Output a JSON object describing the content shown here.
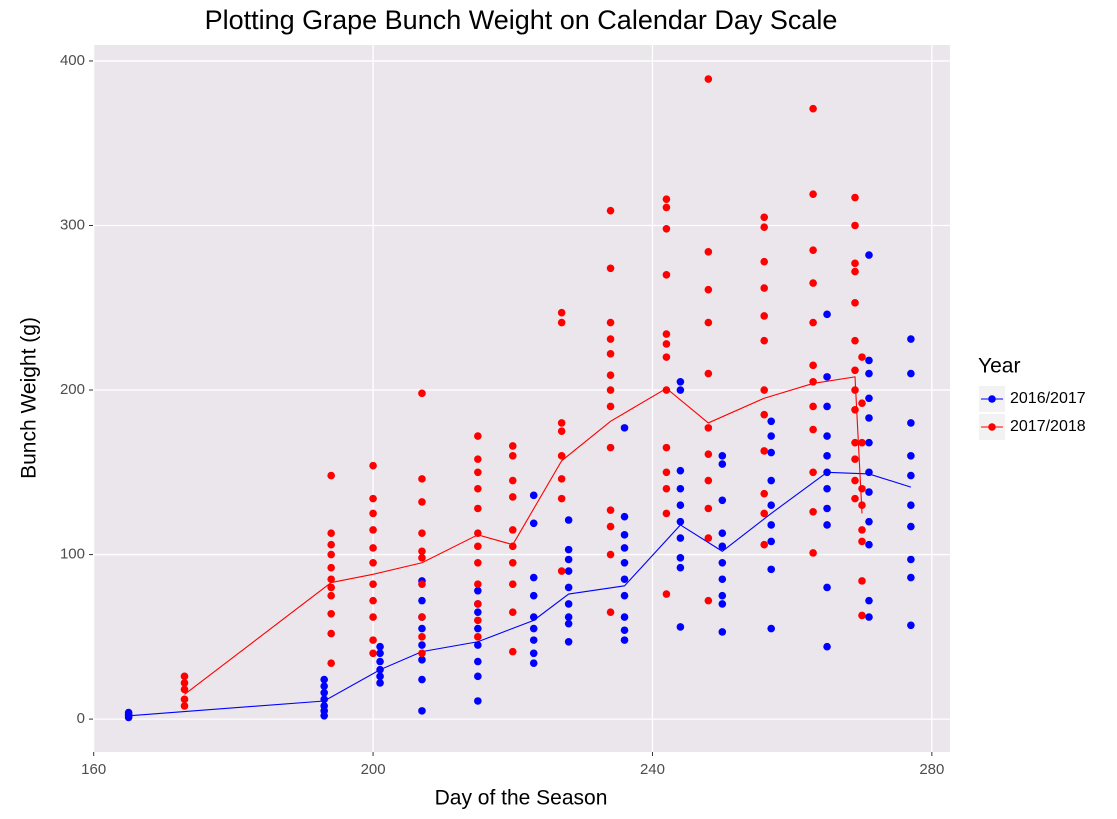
{
  "chart_data": {
    "type": "scatter",
    "title": "Plotting Grape Bunch Weight on Calendar Day Scale",
    "x_label": "Day of the Season",
    "y_label": "Bunch Weight (g)",
    "legend_title": "Year",
    "xlim": [
      159.9,
      282.6
    ],
    "ylim": [
      -20,
      409.7
    ],
    "xticks": [
      160,
      200,
      240,
      280
    ],
    "yticks": [
      0,
      100,
      200,
      300,
      400
    ],
    "grid": true,
    "legend": "right",
    "series": [
      {
        "name": "2016/2017",
        "color": "#0000ff",
        "x": [
          165,
          165,
          165,
          165,
          193,
          193,
          193,
          193,
          193,
          193,
          193,
          201,
          201,
          201,
          201,
          201,
          201,
          207,
          207,
          207,
          207,
          207,
          207,
          207,
          207,
          215,
          215,
          215,
          215,
          215,
          215,
          215,
          215,
          223,
          223,
          223,
          223,
          223,
          223,
          223,
          223,
          223,
          228,
          228,
          228,
          228,
          228,
          228,
          228,
          228,
          228,
          236,
          236,
          236,
          236,
          236,
          236,
          236,
          236,
          236,
          236,
          244,
          244,
          244,
          244,
          244,
          244,
          244,
          244,
          244,
          244,
          250,
          250,
          250,
          250,
          250,
          250,
          250,
          250,
          250,
          250,
          257,
          257,
          257,
          257,
          257,
          257,
          257,
          257,
          257,
          265,
          265,
          265,
          265,
          265,
          265,
          265,
          265,
          265,
          265,
          265,
          271,
          271,
          271,
          271,
          271,
          271,
          271,
          271,
          271,
          271,
          271,
          271,
          277,
          277,
          277,
          277,
          277,
          277,
          277,
          277,
          277,
          277
        ],
        "values": [
          2,
          4,
          1,
          3,
          5,
          8,
          12,
          16,
          20,
          24,
          2,
          22,
          26,
          30,
          35,
          40,
          44,
          5,
          24,
          36,
          45,
          55,
          62,
          72,
          84,
          11,
          26,
          35,
          45,
          55,
          65,
          70,
          78,
          34,
          40,
          48,
          55,
          62,
          75,
          86,
          119,
          136,
          47,
          58,
          62,
          70,
          80,
          90,
          97,
          103,
          121,
          48,
          54,
          62,
          75,
          85,
          95,
          104,
          112,
          123,
          177,
          56,
          92,
          98,
          110,
          120,
          130,
          140,
          151,
          200,
          205,
          53,
          70,
          75,
          85,
          95,
          105,
          113,
          133,
          155,
          160,
          55,
          91,
          108,
          118,
          130,
          145,
          162,
          172,
          181,
          44,
          80,
          118,
          128,
          140,
          150,
          160,
          172,
          190,
          208,
          246,
          62,
          72,
          106,
          120,
          138,
          150,
          168,
          183,
          195,
          210,
          218,
          282,
          57,
          86,
          97,
          117,
          130,
          148,
          160,
          180,
          210,
          231
        ],
        "line": {
          "x": [
            165,
            193,
            201,
            207,
            215,
            223,
            228,
            236,
            244,
            250,
            257,
            265,
            271,
            277
          ],
          "values": [
            2,
            11,
            30,
            41,
            47,
            60,
            76,
            81,
            118,
            102,
            125,
            150,
            149,
            141
          ]
        }
      },
      {
        "name": "2017/2018",
        "color": "#ff0000",
        "x": [
          173,
          173,
          173,
          173,
          173,
          194,
          194,
          194,
          194,
          194,
          194,
          194,
          194,
          194,
          194,
          194,
          200,
          200,
          200,
          200,
          200,
          200,
          200,
          200,
          200,
          200,
          200,
          207,
          207,
          207,
          207,
          207,
          207,
          207,
          207,
          207,
          207,
          215,
          215,
          215,
          215,
          215,
          215,
          215,
          215,
          215,
          215,
          215,
          215,
          220,
          220,
          220,
          220,
          220,
          220,
          220,
          220,
          220,
          220,
          227,
          227,
          227,
          227,
          227,
          227,
          227,
          227,
          234,
          234,
          234,
          234,
          234,
          234,
          234,
          234,
          234,
          234,
          234,
          234,
          234,
          242,
          242,
          242,
          242,
          242,
          242,
          242,
          242,
          242,
          242,
          242,
          242,
          242,
          248,
          248,
          248,
          248,
          248,
          248,
          248,
          248,
          248,
          248,
          248,
          256,
          256,
          256,
          256,
          256,
          256,
          256,
          256,
          256,
          256,
          256,
          256,
          263,
          263,
          263,
          263,
          263,
          263,
          263,
          263,
          263,
          263,
          263,
          263,
          269,
          269,
          269,
          269,
          269,
          269,
          269,
          269,
          269,
          269,
          269,
          269,
          269,
          270,
          270,
          270,
          270,
          270,
          270,
          270,
          270,
          270
        ],
        "values": [
          8,
          12,
          18,
          22,
          26,
          34,
          52,
          64,
          75,
          80,
          85,
          92,
          100,
          106,
          113,
          148,
          40,
          48,
          62,
          72,
          82,
          95,
          104,
          115,
          125,
          134,
          154,
          40,
          50,
          62,
          82,
          98,
          102,
          113,
          132,
          146,
          198,
          50,
          60,
          70,
          82,
          95,
          105,
          113,
          128,
          140,
          150,
          158,
          172,
          41,
          65,
          82,
          95,
          105,
          115,
          135,
          145,
          160,
          166,
          90,
          134,
          146,
          160,
          175,
          180,
          241,
          247,
          65,
          100,
          117,
          127,
          165,
          190,
          200,
          209,
          222,
          231,
          241,
          274,
          309,
          76,
          125,
          140,
          150,
          165,
          200,
          220,
          228,
          234,
          270,
          298,
          311,
          316,
          72,
          110,
          128,
          145,
          161,
          177,
          210,
          241,
          261,
          284,
          389,
          106,
          125,
          137,
          163,
          185,
          200,
          230,
          245,
          262,
          278,
          299,
          305,
          101,
          126,
          150,
          176,
          190,
          205,
          215,
          241,
          265,
          285,
          319,
          371,
          134,
          145,
          158,
          168,
          188,
          200,
          212,
          230,
          253,
          272,
          277,
          300,
          317,
          63,
          84,
          108,
          115,
          130,
          140,
          168,
          192,
          220
        ],
        "line": {
          "x": [
            173,
            194,
            200,
            207,
            215,
            220,
            227,
            234,
            242,
            248,
            256,
            263,
            269,
            270
          ],
          "values": [
            15,
            83,
            88,
            95,
            112,
            106,
            157,
            181,
            201,
            180,
            195,
            204,
            208,
            125
          ]
        }
      }
    ]
  }
}
